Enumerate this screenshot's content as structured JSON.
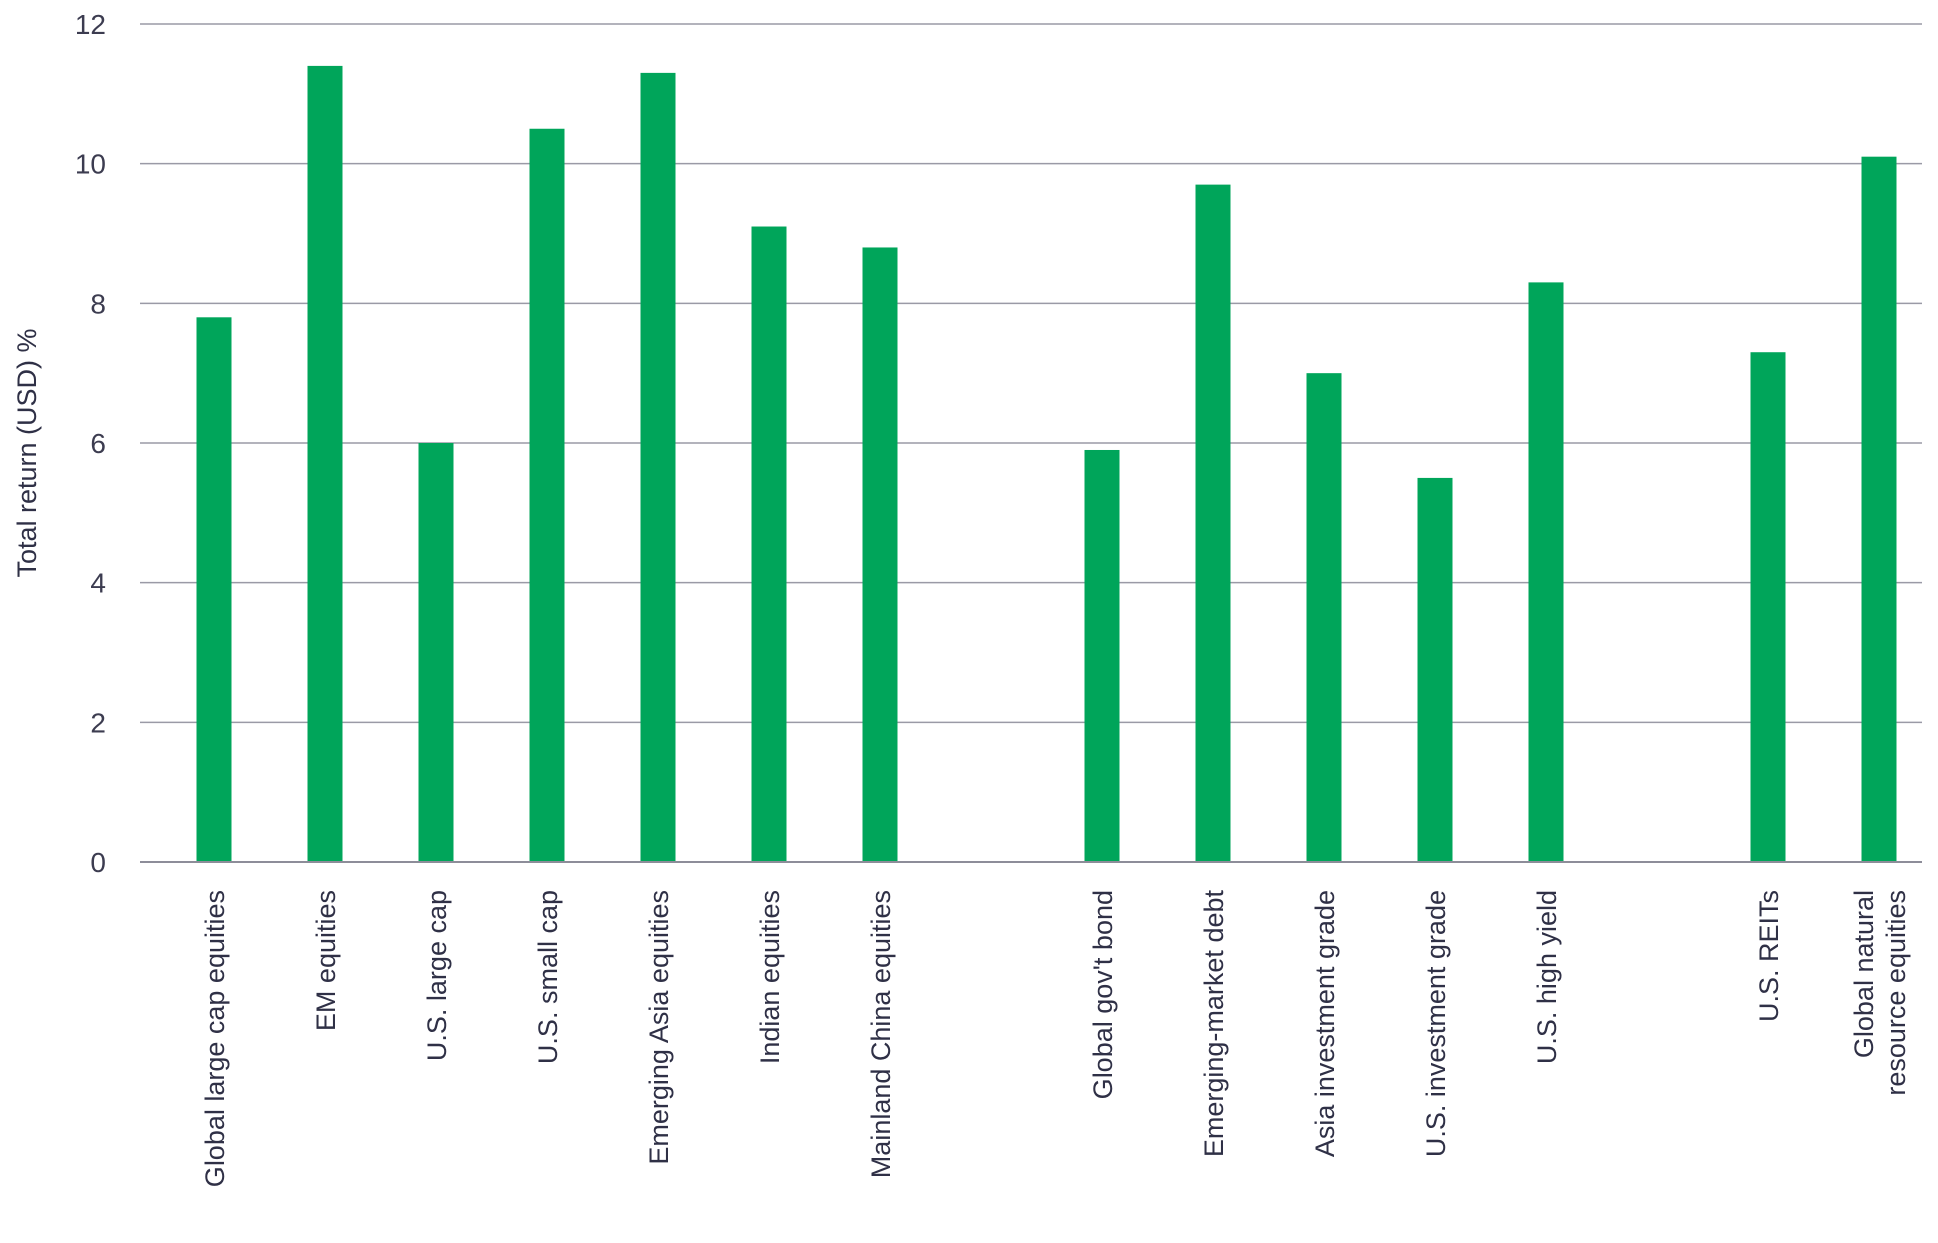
{
  "chart_data": {
    "type": "bar",
    "xlabel": "",
    "ylabel": "Total return (USD) %",
    "ylim": [
      0,
      12
    ],
    "yticks": [
      "0",
      "2",
      "4",
      "6",
      "8",
      "10",
      "12"
    ],
    "grid": true,
    "colors": {
      "bar": "#00a55a",
      "grid": "#9a9aa6"
    },
    "groups": [
      {
        "categories": [
          [
            "Global large cap equities"
          ],
          [
            "EM equities"
          ],
          [
            "U.S. large cap"
          ],
          [
            "U.S. small cap"
          ],
          [
            "Emerging Asia equities"
          ],
          [
            "Indian equities"
          ],
          [
            "Mainland China equities"
          ]
        ],
        "values": [
          7.8,
          11.4,
          6.0,
          10.5,
          11.3,
          9.1,
          8.8
        ]
      },
      {
        "categories": [
          [
            "Global gov't bond"
          ],
          [
            "Emerging-market debt"
          ],
          [
            "Asia investment grade"
          ],
          [
            "U.S. investment grade"
          ],
          [
            "U.S. high yield"
          ]
        ],
        "values": [
          5.9,
          9.7,
          7.0,
          5.5,
          8.3
        ]
      },
      {
        "categories": [
          [
            "U.S. REITs"
          ],
          [
            "Global natural",
            "resource equities"
          ]
        ],
        "values": [
          7.3,
          10.1
        ]
      }
    ]
  }
}
